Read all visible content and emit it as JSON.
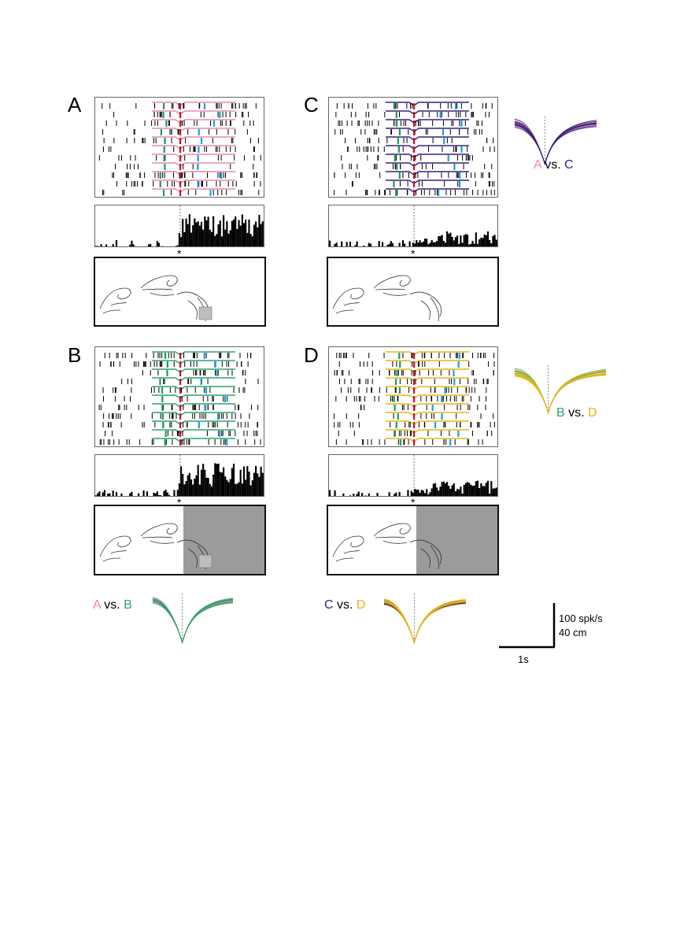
{
  "panels": [
    {
      "id": "A",
      "letter": "A",
      "trace_color": "#e88aa8",
      "occluded": false,
      "object": true
    },
    {
      "id": "B",
      "letter": "B",
      "trace_color": "#2fa36b",
      "occluded": true,
      "object": true
    },
    {
      "id": "C",
      "letter": "C",
      "trace_color": "#3b1f7a",
      "occluded": false,
      "object": false
    },
    {
      "id": "D",
      "letter": "D",
      "trace_color": "#e8b416",
      "occluded": true,
      "object": false
    }
  ],
  "event_marker": "*",
  "comparisons": {
    "ac": {
      "a": "A",
      "vs": "vs.",
      "b": "C",
      "color_a": "#e88aa8",
      "color_b": "#3b1f7a"
    },
    "bd": {
      "a": "B",
      "vs": "vs.",
      "b": "D",
      "color_a": "#2fa36b",
      "color_b": "#e8b416"
    },
    "ab": {
      "a": "A",
      "vs": "vs.",
      "b": "B",
      "color_a": "#e88aa8",
      "color_b": "#2fa36b"
    },
    "cd": {
      "a": "C",
      "vs": "vs.",
      "b": "D",
      "color_a": "#3b1f7a",
      "color_b": "#e8b416"
    }
  },
  "scale_bar": {
    "vertical_label_1": "100 spk/s",
    "vertical_label_2": "40 cm",
    "horizontal_label": "1s"
  },
  "colors": {
    "raster_event_red": "#c8102e",
    "raster_event_cyan": "#1aa3d6",
    "raster_event_green": "#1d9c5a",
    "occluder_gray": "#9b9b9b"
  }
}
